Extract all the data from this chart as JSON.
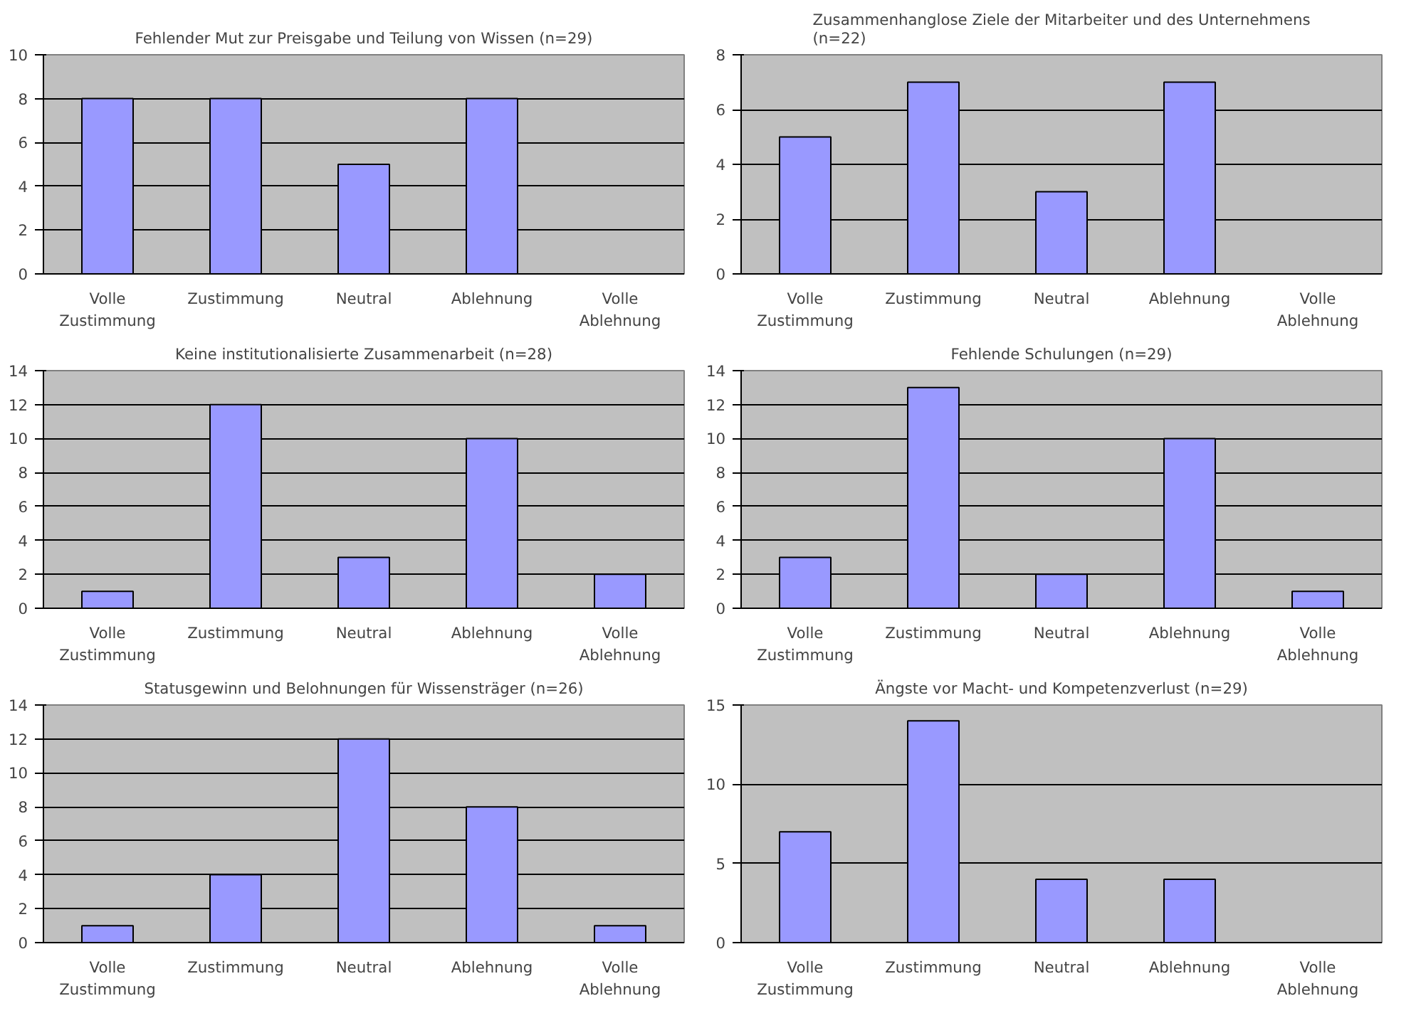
{
  "chart_data": [
    {
      "type": "bar",
      "title": "Fehlender Mut zur Preisgabe und Teilung von Wissen (n=29)",
      "categories": [
        "Volle Zustimmung",
        "Zustimmung",
        "Neutral",
        "Ablehnung",
        "Volle Ablehnung"
      ],
      "values": [
        8,
        8,
        5,
        8,
        null
      ],
      "color": "#9999ff",
      "ylim": [
        0,
        10
      ],
      "yticks": [
        0,
        2,
        4,
        6,
        8,
        10
      ],
      "grid": "y"
    },
    {
      "type": "bar",
      "title": "Zusammenhanglose Ziele der Mitarbeiter und des Unternehmens (n=22)",
      "categories": [
        "Volle Zustimmung",
        "Zustimmung",
        "Neutral",
        "Ablehnung",
        "Volle Ablehnung"
      ],
      "values": [
        5,
        7,
        3,
        7,
        null
      ],
      "color": "#9999ff",
      "ylim": [
        0,
        8
      ],
      "yticks": [
        0,
        2,
        4,
        6,
        8
      ],
      "grid": "y"
    },
    {
      "type": "bar",
      "title": "Keine institutionalisierte Zusammenarbeit (n=28)",
      "categories": [
        "Volle Zustimmung",
        "Zustimmung",
        "Neutral",
        "Ablehnung",
        "Volle Ablehnung"
      ],
      "values": [
        1,
        12,
        3,
        10,
        2
      ],
      "color": "#9999ff",
      "ylim": [
        0,
        14
      ],
      "yticks": [
        0,
        2,
        4,
        6,
        8,
        10,
        12,
        14
      ],
      "grid": "y"
    },
    {
      "type": "bar",
      "title": "Fehlende Schulungen (n=29)",
      "categories": [
        "Volle Zustimmung",
        "Zustimmung",
        "Neutral",
        "Ablehnung",
        "Volle Ablehnung"
      ],
      "values": [
        3,
        13,
        2,
        10,
        1
      ],
      "color": "#9999ff",
      "ylim": [
        0,
        14
      ],
      "yticks": [
        0,
        2,
        4,
        6,
        8,
        10,
        12,
        14
      ],
      "grid": "y"
    },
    {
      "type": "bar",
      "title": "Statusgewinn und Belohnungen für Wissensträger (n=26)",
      "categories": [
        "Volle Zustimmung",
        "Zustimmung",
        "Neutral",
        "Ablehnung",
        "Volle Ablehnung"
      ],
      "values": [
        1,
        4,
        12,
        8,
        1
      ],
      "color": "#9999ff",
      "ylim": [
        0,
        14
      ],
      "yticks": [
        0,
        2,
        4,
        6,
        8,
        10,
        12,
        14
      ],
      "grid": "y"
    },
    {
      "type": "bar",
      "title": "Ängste vor Macht- und Kompetenzverlust (n=29)",
      "categories": [
        "Volle Zustimmung",
        "Zustimmung",
        "Neutral",
        "Ablehnung",
        "Volle Ablehnung"
      ],
      "values": [
        7,
        14,
        4,
        4,
        null
      ],
      "color": "#9999ff",
      "ylim": [
        0,
        15
      ],
      "yticks": [
        0,
        5,
        10,
        15
      ],
      "grid": "y"
    }
  ]
}
